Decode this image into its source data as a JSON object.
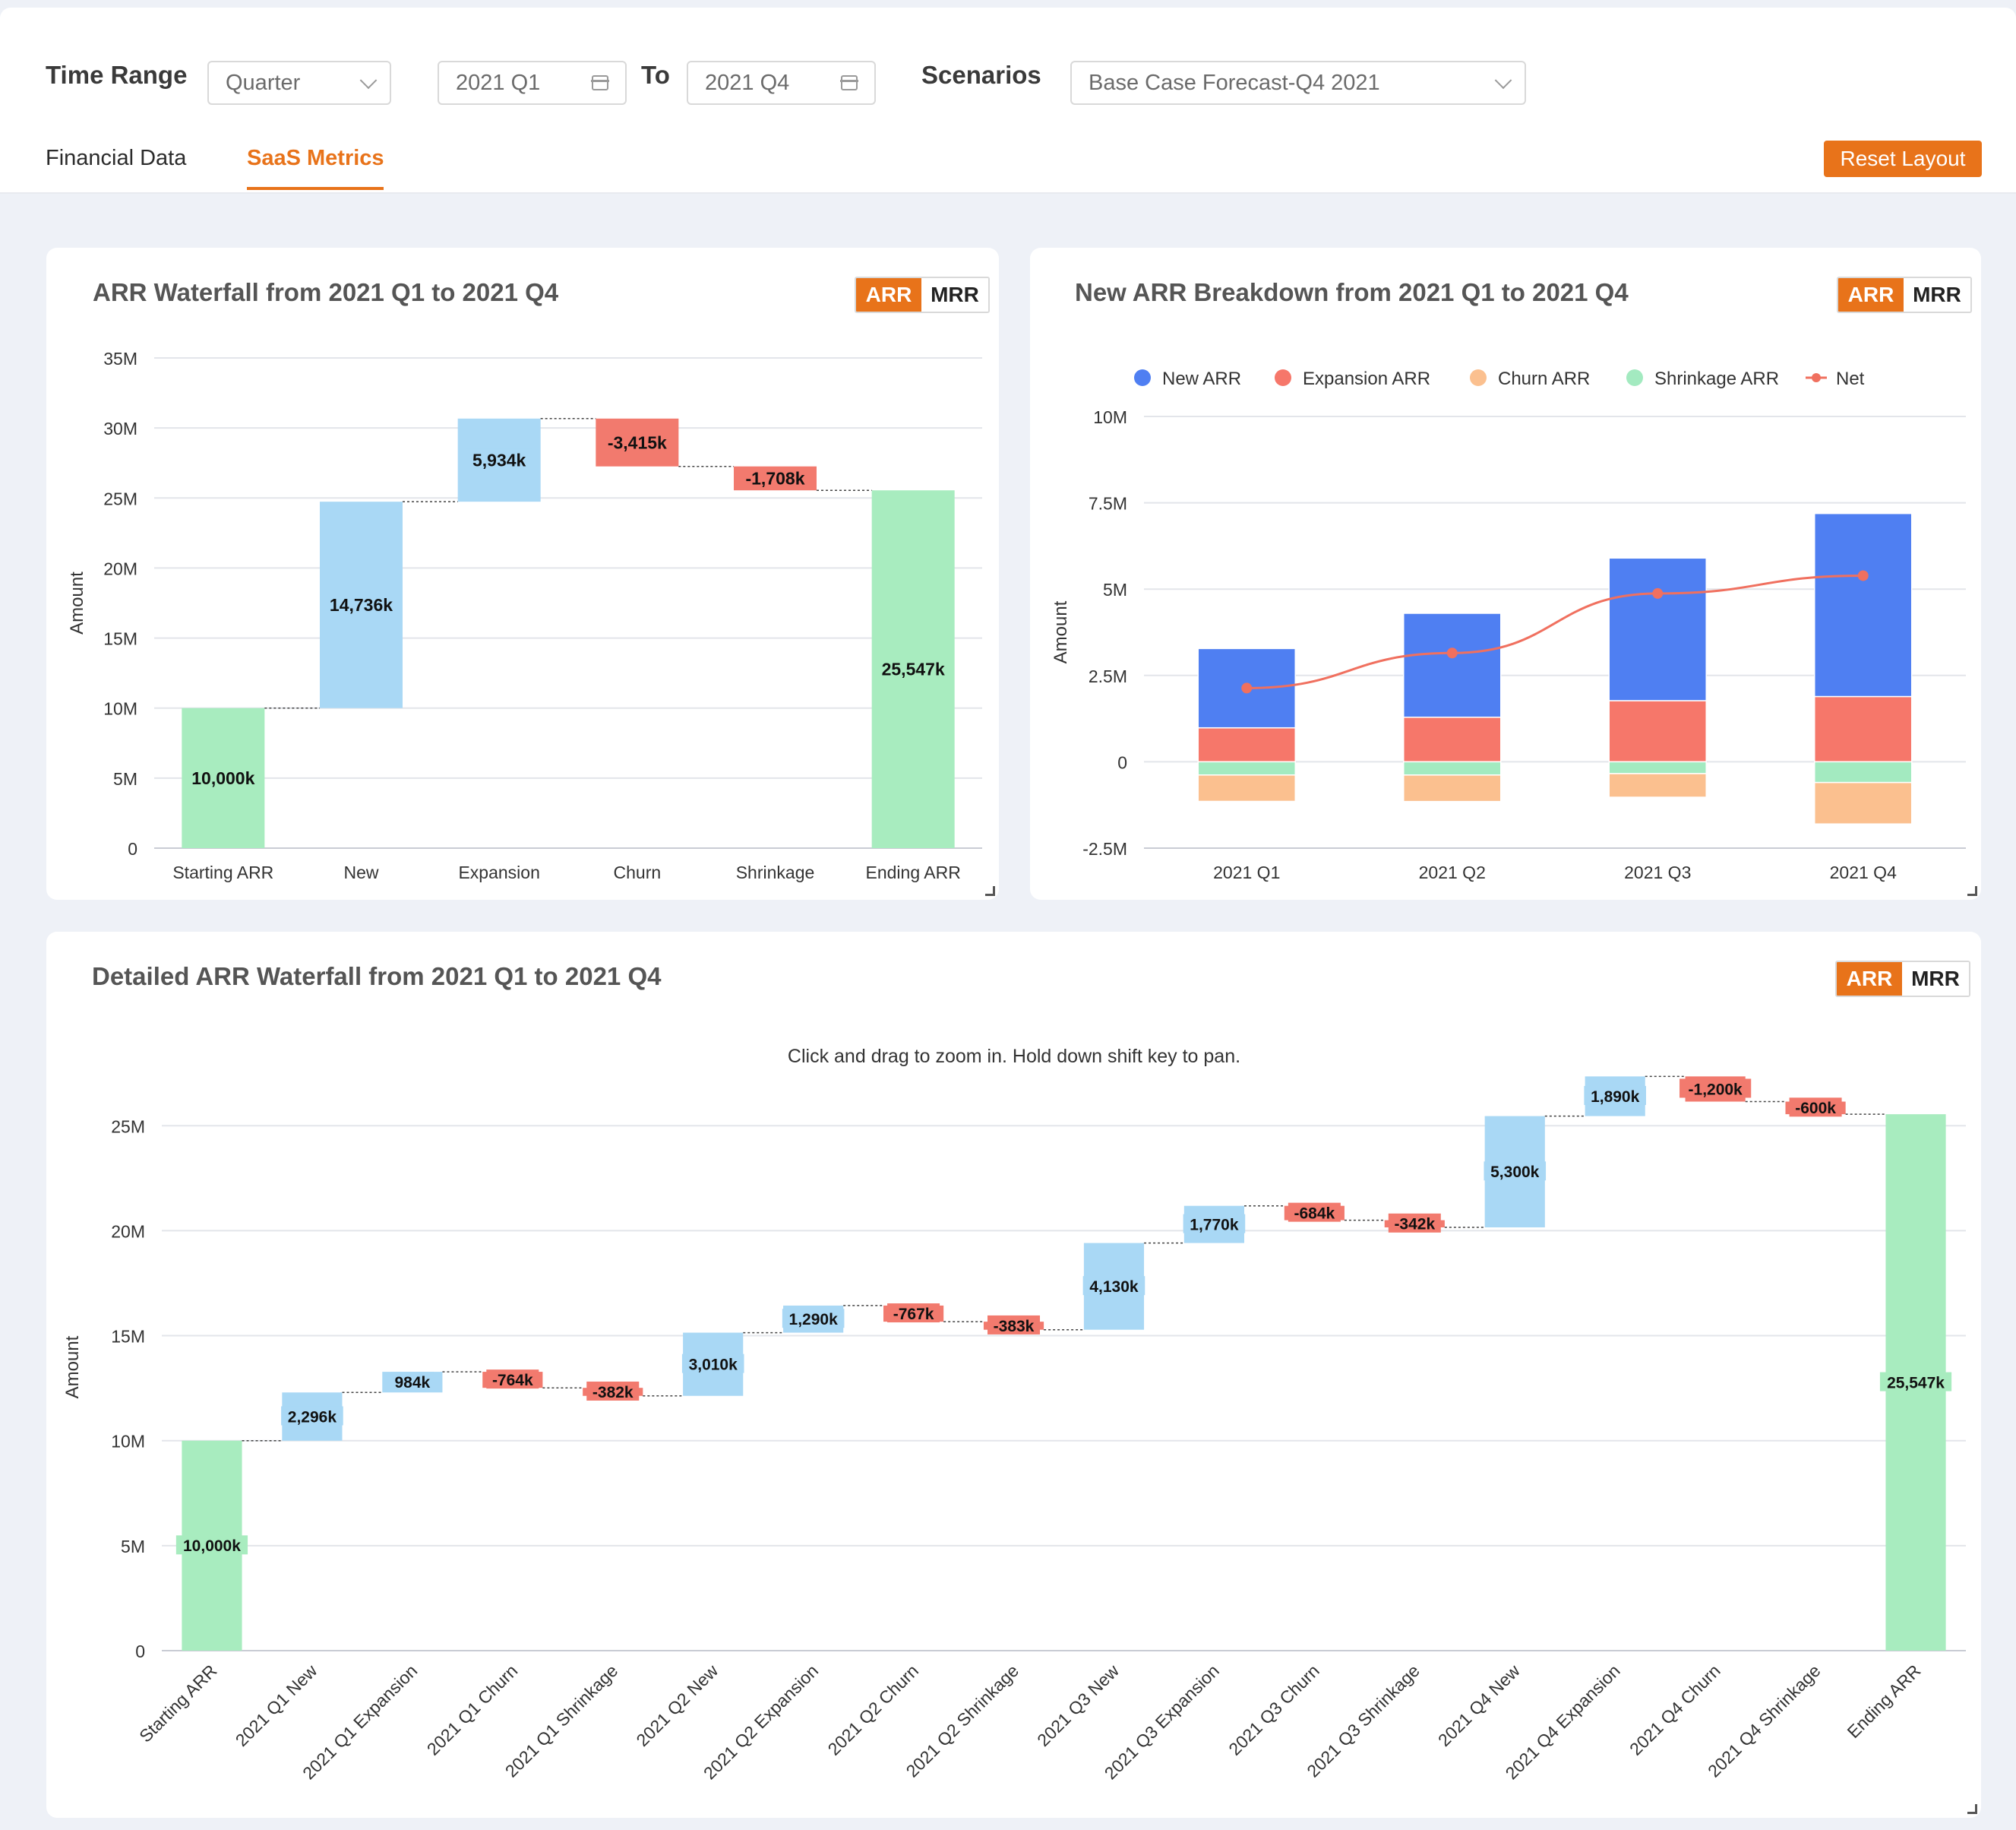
{
  "filters": {
    "time_range_label": "Time Range",
    "period_select": "Quarter",
    "start": "2021 Q1",
    "to_label": "To",
    "end": "2021 Q4",
    "scenarios_label": "Scenarios",
    "scenario_select": "Base Case Forecast-Q4 2021"
  },
  "tabs": [
    {
      "label": "Financial Data",
      "active": false
    },
    {
      "label": "SaaS Metrics",
      "active": true
    }
  ],
  "reset_layout": "Reset Layout",
  "toggle": {
    "on": "ARR",
    "off": "MRR"
  },
  "colors": {
    "accent": "#e8731a",
    "increase": "#a9d8f5",
    "decrease": "#f27a6e",
    "total": "#a8ecbf",
    "new_arr": "#4f7ff2",
    "expansion_arr": "#f6776a",
    "churn_arr": "#fbc08f",
    "shrinkage_arr": "#a3eac0",
    "net": "#f0705f"
  },
  "cards": {
    "waterfall": {
      "title": "ARR Waterfall from 2021 Q1 to 2021 Q4"
    },
    "breakdown": {
      "title": "New ARR Breakdown from 2021 Q1 to 2021 Q4"
    },
    "detailed": {
      "title": "Detailed ARR Waterfall from 2021 Q1 to 2021 Q4",
      "hint": "Click and drag to zoom in. Hold down shift key to pan."
    }
  },
  "chart_data": [
    {
      "type": "bar",
      "subtype": "waterfall",
      "title": "ARR Waterfall from 2021 Q1 to 2021 Q4",
      "ylabel": "Amount",
      "ylim": [
        0,
        35000
      ],
      "yticks": [
        0,
        5000,
        10000,
        15000,
        20000,
        25000,
        30000,
        35000
      ],
      "ytick_labels": [
        "0",
        "5M",
        "10M",
        "15M",
        "20M",
        "25M",
        "30M",
        "35M"
      ],
      "categories": [
        "Starting ARR",
        "New",
        "Expansion",
        "Churn",
        "Shrinkage",
        "Ending ARR"
      ],
      "values": [
        10000,
        14736,
        5934,
        -3415,
        -1708,
        25547
      ],
      "value_labels": [
        "10,000k",
        "14,736k",
        "5,934k",
        "-3,415k",
        "-1,708k",
        "25,547k"
      ],
      "kinds": [
        "total",
        "delta",
        "delta",
        "delta",
        "delta",
        "total"
      ],
      "grid": true
    },
    {
      "type": "bar",
      "subtype": "stacked_with_line",
      "title": "New ARR Breakdown from 2021 Q1 to 2021 Q4",
      "ylabel": "Amount",
      "ylim": [
        -2500,
        10000
      ],
      "yticks": [
        -2500,
        0,
        2500,
        5000,
        7500,
        10000
      ],
      "ytick_labels": [
        "-2.5M",
        "0",
        "2.5M",
        "5M",
        "7.5M",
        "10M"
      ],
      "categories": [
        "2021 Q1",
        "2021 Q2",
        "2021 Q3",
        "2021 Q4"
      ],
      "legend_position": "top",
      "series": [
        {
          "name": "New ARR",
          "values": [
            2296,
            3010,
            4130,
            5300
          ]
        },
        {
          "name": "Expansion ARR",
          "values": [
            984,
            1290,
            1770,
            1890
          ]
        },
        {
          "name": "Churn ARR",
          "values": [
            -764,
            -767,
            -684,
            -1200
          ]
        },
        {
          "name": "Shrinkage ARR",
          "values": [
            -382,
            -383,
            -342,
            -600
          ]
        },
        {
          "name": "Net",
          "type": "line",
          "values": [
            2134,
            3150,
            4874,
            5390
          ]
        }
      ],
      "grid": true
    },
    {
      "type": "bar",
      "subtype": "waterfall",
      "title": "Detailed ARR Waterfall from 2021 Q1 to 2021 Q4",
      "ylabel": "Amount",
      "ylim": [
        0,
        27000
      ],
      "yticks": [
        0,
        5000,
        10000,
        15000,
        20000,
        25000
      ],
      "ytick_labels": [
        "0",
        "5M",
        "10M",
        "15M",
        "20M",
        "25M"
      ],
      "categories": [
        "Starting ARR",
        "2021 Q1 New",
        "2021 Q1 Expansion",
        "2021 Q1 Churn",
        "2021 Q1 Shrinkage",
        "2021 Q2 New",
        "2021 Q2 Expansion",
        "2021 Q2 Churn",
        "2021 Q2 Shrinkage",
        "2021 Q3 New",
        "2021 Q3 Expansion",
        "2021 Q3 Churn",
        "2021 Q3 Shrinkage",
        "2021 Q4 New",
        "2021 Q4 Expansion",
        "2021 Q4 Churn",
        "2021 Q4 Shrinkage",
        "Ending ARR"
      ],
      "values": [
        10000,
        2296,
        984,
        -764,
        -382,
        3010,
        1290,
        -767,
        -383,
        4130,
        1770,
        -684,
        -342,
        5300,
        1890,
        -1200,
        -600,
        25547
      ],
      "value_labels": [
        "10,000k",
        "2,296k",
        "984k",
        "-764k",
        "-382k",
        "3,010k",
        "1,290k",
        "-767k",
        "-383k",
        "4,130k",
        "1,770k",
        "-684k",
        "-342k",
        "5,300k",
        "1,890k",
        "-1,200k",
        "-600k",
        "25,547k"
      ],
      "kinds": [
        "total",
        "delta",
        "delta",
        "delta",
        "delta",
        "delta",
        "delta",
        "delta",
        "delta",
        "delta",
        "delta",
        "delta",
        "delta",
        "delta",
        "delta",
        "delta",
        "delta",
        "total"
      ],
      "grid": true
    }
  ]
}
